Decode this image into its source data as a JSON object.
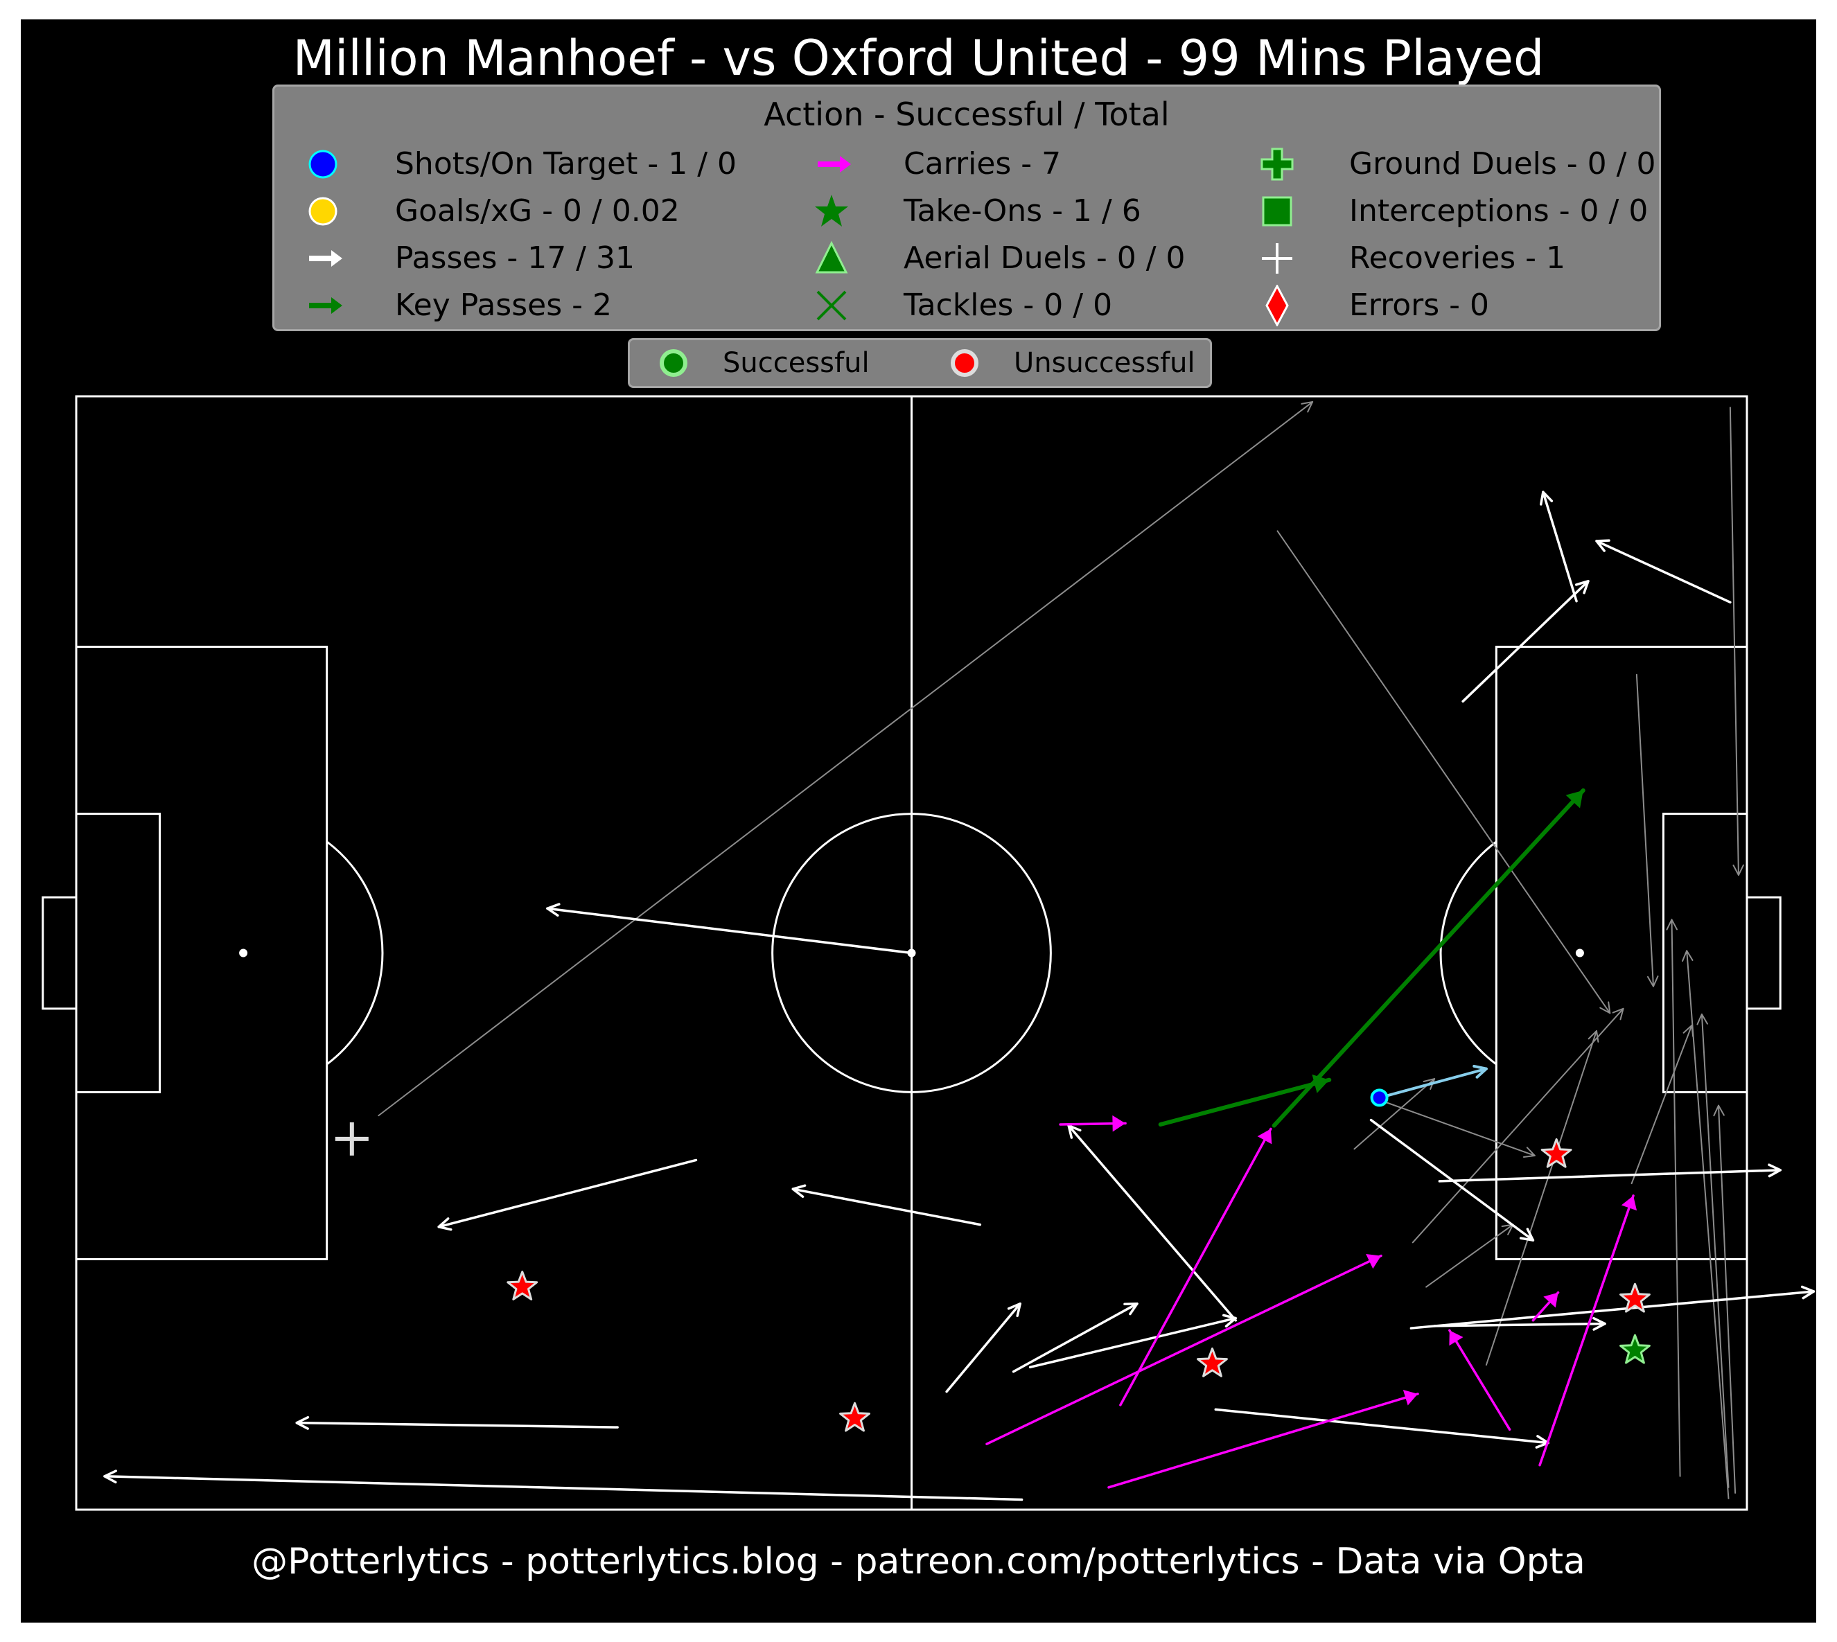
{
  "title": "Million Manhoef - vs Oxford United - 99 Mins Played",
  "footer": "@Potterlytics - potterlytics.blog - patreon.com/potterlytics - Data via Opta",
  "legend": {
    "title": "Action - Successful / Total",
    "items": [
      {
        "icon": "shot-circle-icon",
        "label": "Shots/On Target - 1 / 0"
      },
      {
        "icon": "goal-circle-icon",
        "label": "Goals/xG - 0 / 0.02"
      },
      {
        "icon": "pass-arrow-icon",
        "label": "Passes - 17 / 31"
      },
      {
        "icon": "key-pass-arrow-icon",
        "label": "Key Passes - 2"
      },
      {
        "icon": "carry-arrow-icon",
        "label": "Carries - 7"
      },
      {
        "icon": "take-on-star-icon",
        "label": "Take-Ons - 1 / 6"
      },
      {
        "icon": "aerial-triangle-icon",
        "label": "Aerial Duels - 0 / 0"
      },
      {
        "icon": "tackle-x-icon",
        "label": "Tackles - 0 / 0"
      },
      {
        "icon": "ground-duel-plus-icon",
        "label": "Ground Duels - 0 / 0"
      },
      {
        "icon": "interception-square-icon",
        "label": "Interceptions - 0 / 0"
      },
      {
        "icon": "recovery-plus-icon",
        "label": "Recoveries - 1"
      },
      {
        "icon": "error-diamond-icon",
        "label": "Errors - 0"
      }
    ],
    "status": {
      "successful": "Successful",
      "unsuccessful": "Unsuccessful"
    }
  },
  "colors": {
    "background": "#000000",
    "pitch_lines": "#ffffff",
    "legend_bg": "#808080",
    "pass_success": "#ffffff",
    "pass_fail": "#8c8c8c",
    "key_pass": "#008000",
    "carry": "#ff00ff",
    "shot": "#0000ff",
    "shot_line": "#87ceeb",
    "goal": "#ffd700",
    "unsuccessful": "#ff0000",
    "successful": "#90ee90"
  },
  "chart_data": {
    "type": "scatter",
    "title": "Million Manhoef - vs Oxford United - 99 Mins Played",
    "pitch": {
      "length": 100,
      "width": 100,
      "attacking_direction": "right"
    },
    "passes_successful": [
      {
        "x": 50.0,
        "y": 50.0,
        "end_x": 28.2,
        "end_y": 54.0
      },
      {
        "x": 69.4,
        "y": 17.0,
        "end_x": 59.4,
        "end_y": 34.5
      },
      {
        "x": 54.1,
        "y": 25.6,
        "end_x": 42.9,
        "end_y": 28.8
      },
      {
        "x": 37.1,
        "y": 31.4,
        "end_x": 21.7,
        "end_y": 25.4
      },
      {
        "x": 32.4,
        "y": 7.4,
        "end_x": 13.2,
        "end_y": 7.8
      },
      {
        "x": 89.8,
        "y": 81.6,
        "end_x": 87.8,
        "end_y": 91.4
      },
      {
        "x": 83.0,
        "y": 72.6,
        "end_x": 90.5,
        "end_y": 83.4
      },
      {
        "x": 77.5,
        "y": 35.0,
        "end_x": 87.2,
        "end_y": 24.2
      },
      {
        "x": 81.6,
        "y": 29.5,
        "end_x": 102.0,
        "end_y": 30.5
      },
      {
        "x": 56.6,
        "y": 0.9,
        "end_x": 1.7,
        "end_y": 3.0
      },
      {
        "x": 56.1,
        "y": 12.4,
        "end_x": 63.5,
        "end_y": 18.5
      },
      {
        "x": 52.1,
        "y": 10.6,
        "end_x": 56.5,
        "end_y": 18.5
      },
      {
        "x": 57.1,
        "y": 12.8,
        "end_x": 69.4,
        "end_y": 17.2
      },
      {
        "x": 79.9,
        "y": 16.3,
        "end_x": 104.0,
        "end_y": 19.6
      },
      {
        "x": 68.2,
        "y": 9.0,
        "end_x": 88.1,
        "end_y": 6.0
      },
      {
        "x": 81.3,
        "y": 16.5,
        "end_x": 91.5,
        "end_y": 16.7
      },
      {
        "x": 99.0,
        "y": 81.5,
        "end_x": 91.0,
        "end_y": 87.0
      }
    ],
    "passes_unsuccessful": [
      {
        "x": 18.1,
        "y": 35.4,
        "end_x": 74.0,
        "end_y": 99.5
      },
      {
        "x": 71.9,
        "y": 87.9,
        "end_x": 91.8,
        "end_y": 44.6
      },
      {
        "x": 93.4,
        "y": 75.0,
        "end_x": 94.4,
        "end_y": 47.0
      },
      {
        "x": 99.0,
        "y": 99.0,
        "end_x": 99.5,
        "end_y": 57.0
      },
      {
        "x": 98.9,
        "y": 1.0,
        "end_x": 96.4,
        "end_y": 50.2
      },
      {
        "x": 99.3,
        "y": 1.5,
        "end_x": 98.3,
        "end_y": 36.3
      },
      {
        "x": 98.9,
        "y": 2.0,
        "end_x": 97.3,
        "end_y": 44.5
      },
      {
        "x": 96.0,
        "y": 3.0,
        "end_x": 95.5,
        "end_y": 53.0
      },
      {
        "x": 93.1,
        "y": 29.3,
        "end_x": 96.7,
        "end_y": 43.5
      },
      {
        "x": 80.0,
        "y": 24.0,
        "end_x": 92.6,
        "end_y": 45.0
      },
      {
        "x": 84.4,
        "y": 13.0,
        "end_x": 91.0,
        "end_y": 43.0
      },
      {
        "x": 80.8,
        "y": 20.0,
        "end_x": 86.0,
        "end_y": 25.6
      },
      {
        "x": 76.5,
        "y": 32.4,
        "end_x": 81.3,
        "end_y": 38.7
      },
      {
        "x": 78.0,
        "y": 36.8,
        "end_x": 87.3,
        "end_y": 31.8
      }
    ],
    "key_passes": [
      {
        "x": 64.9,
        "y": 34.6,
        "end_x": 75.0,
        "end_y": 38.6
      },
      {
        "x": 71.7,
        "y": 34.5,
        "end_x": 90.2,
        "end_y": 64.6
      }
    ],
    "carries": [
      {
        "x": 58.9,
        "y": 34.6,
        "end_x": 62.8,
        "end_y": 34.7
      },
      {
        "x": 62.5,
        "y": 9.4,
        "end_x": 71.5,
        "end_y": 34.2
      },
      {
        "x": 54.5,
        "y": 5.9,
        "end_x": 78.1,
        "end_y": 22.8
      },
      {
        "x": 61.8,
        "y": 2.0,
        "end_x": 80.3,
        "end_y": 10.4
      },
      {
        "x": 85.8,
        "y": 7.2,
        "end_x": 82.2,
        "end_y": 16.1
      },
      {
        "x": 87.6,
        "y": 4.0,
        "end_x": 93.2,
        "end_y": 28.2
      },
      {
        "x": 87.2,
        "y": 17.0,
        "end_x": 88.7,
        "end_y": 19.5
      }
    ],
    "shots": [
      {
        "x": 78.0,
        "y": 37.0,
        "end_x": 84.4,
        "end_y": 39.6,
        "on_target": false,
        "xG": 0.02
      }
    ],
    "take_ons": [
      {
        "x": 26.7,
        "y": 20.0,
        "successful": false
      },
      {
        "x": 46.6,
        "y": 8.2,
        "successful": false
      },
      {
        "x": 68.0,
        "y": 13.1,
        "successful": false
      },
      {
        "x": 88.6,
        "y": 31.9,
        "successful": false
      },
      {
        "x": 93.3,
        "y": 18.9,
        "successful": false
      },
      {
        "x": 93.3,
        "y": 14.3,
        "successful": true
      }
    ],
    "recoveries": [
      {
        "x": 16.5,
        "y": 33.3
      }
    ]
  }
}
